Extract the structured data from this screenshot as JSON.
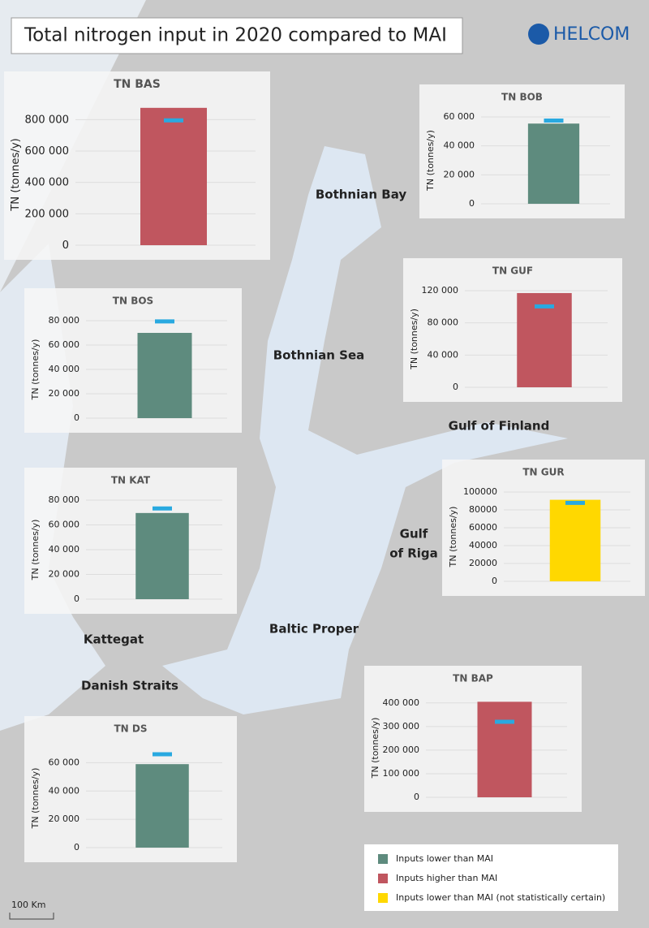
{
  "title": "Total nitrogen input in 2020 compared to MAI",
  "logo": "HELCOM",
  "regions": [
    {
      "lines": [
        "Bothnian Bay"
      ]
    },
    {
      "lines": [
        "Bothnian Sea"
      ]
    },
    {
      "lines": [
        "Gulf of Finland"
      ]
    },
    {
      "lines": [
        "Gulf",
        "of Riga"
      ]
    },
    {
      "lines": [
        "Baltic Proper"
      ]
    },
    {
      "lines": [
        "Kattegat"
      ]
    },
    {
      "lines": [
        "Danish Straits"
      ]
    }
  ],
  "mai_color": "#29a9e0",
  "chart_data": [
    {
      "type": "bar",
      "title": "TN BAS",
      "y_label": "TN (tonnes/y)",
      "values": [
        875000
      ],
      "mai": [
        795000
      ],
      "color": "#c0565f",
      "ylim": [
        0,
        900000
      ],
      "yticks": [
        0,
        {
          "value": 200000,
          "label": "200 000"
        },
        {
          "value": 400000,
          "label": "400 000"
        },
        {
          "value": 600000,
          "label": "600 000"
        },
        {
          "value": 800000,
          "label": "800 000"
        }
      ],
      "grid": true
    },
    {
      "type": "bar",
      "title": "TN BOB",
      "y_label": "TN (tonnes/y)",
      "values": [
        55400
      ],
      "mai": [
        57500
      ],
      "color": "#5e8b7e",
      "ylim": [
        0,
        60000
      ],
      "yticks": [
        0,
        {
          "value": 20000,
          "label": "20 000"
        },
        {
          "value": 40000,
          "label": "40 000"
        },
        {
          "value": 60000,
          "label": "60 000"
        }
      ],
      "grid": true
    },
    {
      "type": "bar",
      "title": "TN GUF",
      "y_label": "TN (tonnes/y)",
      "values": [
        117000
      ],
      "mai": [
        100500
      ],
      "color": "#c0565f",
      "ylim": [
        0,
        120000
      ],
      "yticks": [
        0,
        {
          "value": 40000,
          "label": "40 000"
        },
        {
          "value": 80000,
          "label": "80 000"
        },
        {
          "value": 120000,
          "label": "120 000"
        }
      ],
      "grid": true
    },
    {
      "type": "bar",
      "title": "TN BOS",
      "y_label": "TN (tonnes/y)",
      "values": [
        70000
      ],
      "mai": [
        79400
      ],
      "color": "#5e8b7e",
      "ylim": [
        0,
        80000
      ],
      "yticks": [
        0,
        {
          "value": 20000,
          "label": "20 000"
        },
        {
          "value": 40000,
          "label": "40 000"
        },
        {
          "value": 60000,
          "label": "60 000"
        },
        {
          "value": 80000,
          "label": "80 000"
        }
      ],
      "grid": true
    },
    {
      "type": "bar",
      "title": "TN KAT",
      "y_label": "TN (tonnes/y)",
      "values": [
        69600
      ],
      "mai": [
        73300
      ],
      "color": "#5e8b7e",
      "ylim": [
        0,
        80000
      ],
      "yticks": [
        0,
        {
          "value": 20000,
          "label": "20 000"
        },
        {
          "value": 40000,
          "label": "40 000"
        },
        {
          "value": 60000,
          "label": "60 000"
        },
        {
          "value": 80000,
          "label": "80 000"
        }
      ],
      "grid": true
    },
    {
      "type": "bar",
      "title": "TN GUR",
      "y_label": "TN (tonnes/y)",
      "values": [
        91300
      ],
      "mai": [
        87800
      ],
      "color": "#ffd800",
      "ylim": [
        0,
        100000
      ],
      "yticks": [
        0,
        20000,
        40000,
        60000,
        80000,
        100000
      ],
      "grid": true
    },
    {
      "type": "bar",
      "title": "TN BAP",
      "y_label": "TN (tonnes/y)",
      "values": [
        405000
      ],
      "mai": [
        320000
      ],
      "color": "#c0565f",
      "ylim": [
        0,
        420000
      ],
      "yticks": [
        0,
        {
          "value": 100000,
          "label": "100 000"
        },
        {
          "value": 200000,
          "label": "200 000"
        },
        {
          "value": 300000,
          "label": "300 000"
        },
        {
          "value": 400000,
          "label": "400 000"
        }
      ],
      "grid": true
    },
    {
      "type": "bar",
      "title": "TN DS",
      "y_label": "TN (tonnes/y)",
      "values": [
        59000
      ],
      "mai": [
        66000
      ],
      "color": "#5e8b7e",
      "ylim": [
        0,
        70000
      ],
      "yticks": [
        0,
        {
          "value": 20000,
          "label": "20 000"
        },
        {
          "value": 40000,
          "label": "40 000"
        },
        {
          "value": 60000,
          "label": "60 000"
        }
      ],
      "grid": true
    }
  ],
  "legend": [
    {
      "label": "Inputs lower than MAI",
      "color": "#5e8b7e"
    },
    {
      "label": "Inputs higher than MAI",
      "color": "#c0565f"
    },
    {
      "label": "Inputs lower than MAI (not statistically certain)",
      "color": "#ffd800"
    }
  ],
  "scale": "100 Km"
}
